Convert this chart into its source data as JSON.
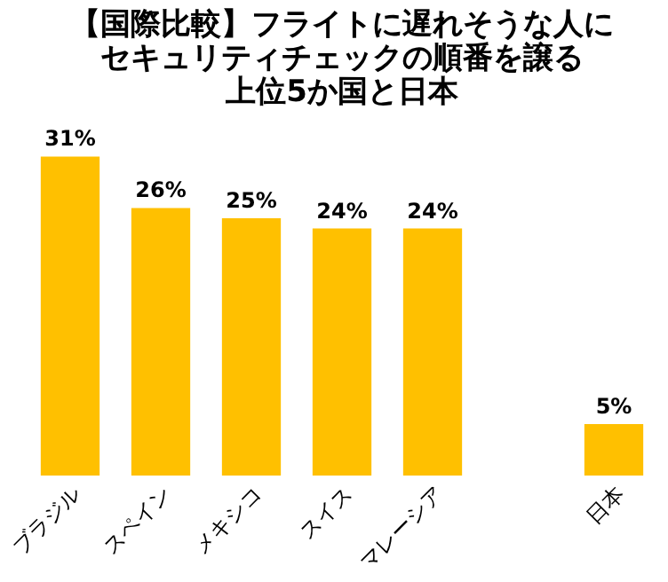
{
  "chart_data": {
    "type": "bar",
    "title": [
      "【国際比較】フライトに遅れそうな人に",
      "セキュリティチェックの順番を譲る",
      "上位5か国と日本"
    ],
    "categories": [
      "ブラジル",
      "スペイン",
      "メキシコ",
      "スイス",
      "マレーシア",
      null,
      "日本"
    ],
    "values": [
      31,
      26,
      25,
      24,
      24,
      null,
      5
    ],
    "color": "#ffc000",
    "value_labels": [
      "31%",
      "26%",
      "25%",
      "24%",
      "24%",
      null,
      "5%"
    ]
  }
}
